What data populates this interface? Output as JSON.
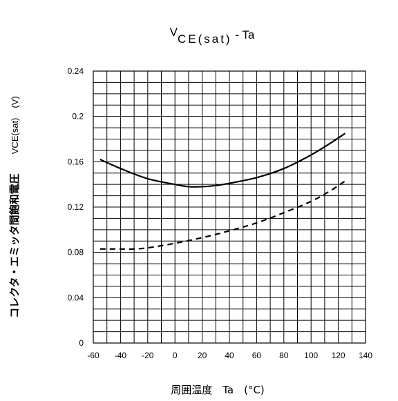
{
  "chart_data": {
    "type": "line",
    "title": {
      "base": "V",
      "subscript": "CE(sat)",
      "suffix": " - Ta"
    },
    "xlabel": "周囲温度　Ta　(°C)",
    "ylabel": {
      "japanese": "コレクタ・エミッタ間飽和電圧",
      "symbol": "VCE(sat)",
      "unit": "(V)"
    },
    "xlim": [
      -60,
      140
    ],
    "ylim": [
      0,
      0.24
    ],
    "x_ticks": [
      "-60",
      "-40",
      "-20",
      "0",
      "20",
      "40",
      "60",
      "80",
      "100",
      "120",
      "140"
    ],
    "y_ticks": [
      "0",
      "0.04",
      "0.08",
      "0.12",
      "0.16",
      "0.2",
      "0.24"
    ],
    "x_minor_step": 10,
    "y_minor_step": 0.01,
    "grid": true,
    "series": [
      {
        "style": "solid",
        "points": [
          [
            -55,
            0.162
          ],
          [
            -40,
            0.154
          ],
          [
            -20,
            0.145
          ],
          [
            0,
            0.14
          ],
          [
            10,
            0.138
          ],
          [
            20,
            0.138
          ],
          [
            30,
            0.139
          ],
          [
            40,
            0.141
          ],
          [
            60,
            0.146
          ],
          [
            80,
            0.154
          ],
          [
            100,
            0.166
          ],
          [
            115,
            0.177
          ],
          [
            125,
            0.185
          ]
        ]
      },
      {
        "style": "dashed",
        "points": [
          [
            -55,
            0.083
          ],
          [
            -40,
            0.083
          ],
          [
            -30,
            0.083
          ],
          [
            -20,
            0.084
          ],
          [
            0,
            0.088
          ],
          [
            20,
            0.093
          ],
          [
            40,
            0.099
          ],
          [
            60,
            0.106
          ],
          [
            80,
            0.115
          ],
          [
            100,
            0.125
          ],
          [
            115,
            0.135
          ],
          [
            125,
            0.143
          ]
        ]
      }
    ]
  }
}
